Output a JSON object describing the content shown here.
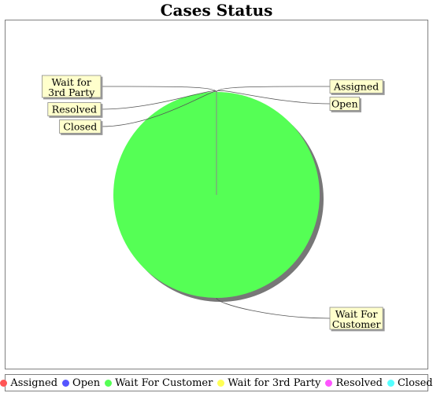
{
  "chart_data": {
    "type": "pie",
    "title": "Cases Status",
    "categories": [
      "Assigned",
      "Open",
      "Wait For Customer",
      "Wait for 3rd Party",
      "Resolved",
      "Closed"
    ],
    "values": [
      0,
      0,
      1,
      0,
      0,
      0
    ],
    "colors": [
      "#ff5555",
      "#5555ff",
      "#55ff55",
      "#ffff55",
      "#ff55ff",
      "#55ffff"
    ],
    "legend_labels": [
      "Assigned",
      "Open",
      "Wait For Customer",
      "Wait for 3rd Party",
      "Resolved",
      "Closed"
    ],
    "slice_labels": [
      "Assigned",
      "Open",
      "Wait For Customer",
      "Wait for 3rd Party",
      "Resolved",
      "Closed"
    ],
    "legend_position": "bottom"
  }
}
